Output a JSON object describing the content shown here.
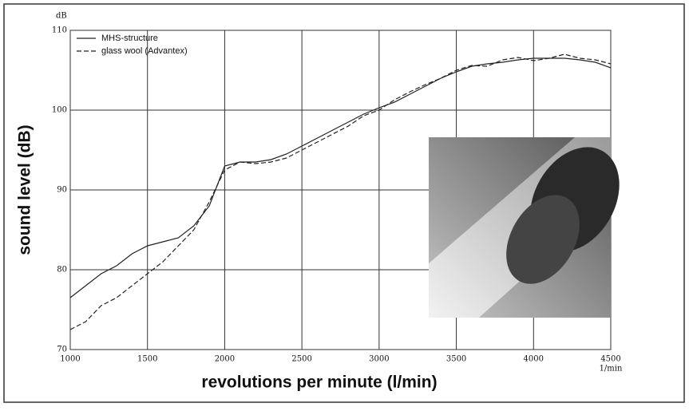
{
  "chart_data": {
    "type": "line",
    "y_label": "sound level (dB)",
    "x_label": "revolutions per minute (l/min)",
    "y_unit": "dB",
    "x_unit": "1/min",
    "x": [
      1000,
      1100,
      1200,
      1300,
      1400,
      1500,
      1600,
      1700,
      1800,
      1900,
      2000,
      2100,
      2200,
      2300,
      2400,
      2500,
      2600,
      2700,
      2800,
      2900,
      3000,
      3100,
      3200,
      3300,
      3400,
      3500,
      3600,
      3700,
      3800,
      3900,
      4000,
      4100,
      4200,
      4300,
      4400,
      4500
    ],
    "series": [
      {
        "name": "MHS-structure",
        "color": "#222222",
        "dash": "solid",
        "values": [
          76.5,
          78,
          79.5,
          80.5,
          82,
          83,
          83.5,
          84,
          85.5,
          88,
          93,
          93.5,
          93.5,
          93.8,
          94.5,
          95.5,
          96.5,
          97.5,
          98.5,
          99.5,
          100.3,
          101,
          102,
          103,
          104,
          104.8,
          105.5,
          105.8,
          106,
          106.3,
          106.5,
          106.5,
          106.5,
          106.3,
          106,
          105.3
        ]
      },
      {
        "name": "glass wool (Advantex)",
        "color": "#222222",
        "dash": "dashed",
        "values": [
          72.5,
          73.5,
          75.5,
          76.5,
          78,
          79.5,
          81,
          83,
          85,
          88.5,
          92.5,
          93.5,
          93.3,
          93.5,
          94,
          95,
          96,
          97,
          98,
          99.3,
          100,
          101.3,
          102.3,
          103.2,
          104,
          105,
          105.6,
          105.5,
          106.3,
          106.6,
          106.2,
          106.5,
          107,
          106.5,
          106.3,
          105.8
        ]
      }
    ],
    "xlim": [
      1000,
      4500
    ],
    "xticks": [
      1000,
      1500,
      2000,
      2500,
      3000,
      3500,
      4000,
      4500
    ],
    "ylim": [
      70,
      110
    ],
    "yticks": [
      70,
      80,
      90,
      100,
      110
    ],
    "grid": true,
    "legend": "top-left"
  }
}
